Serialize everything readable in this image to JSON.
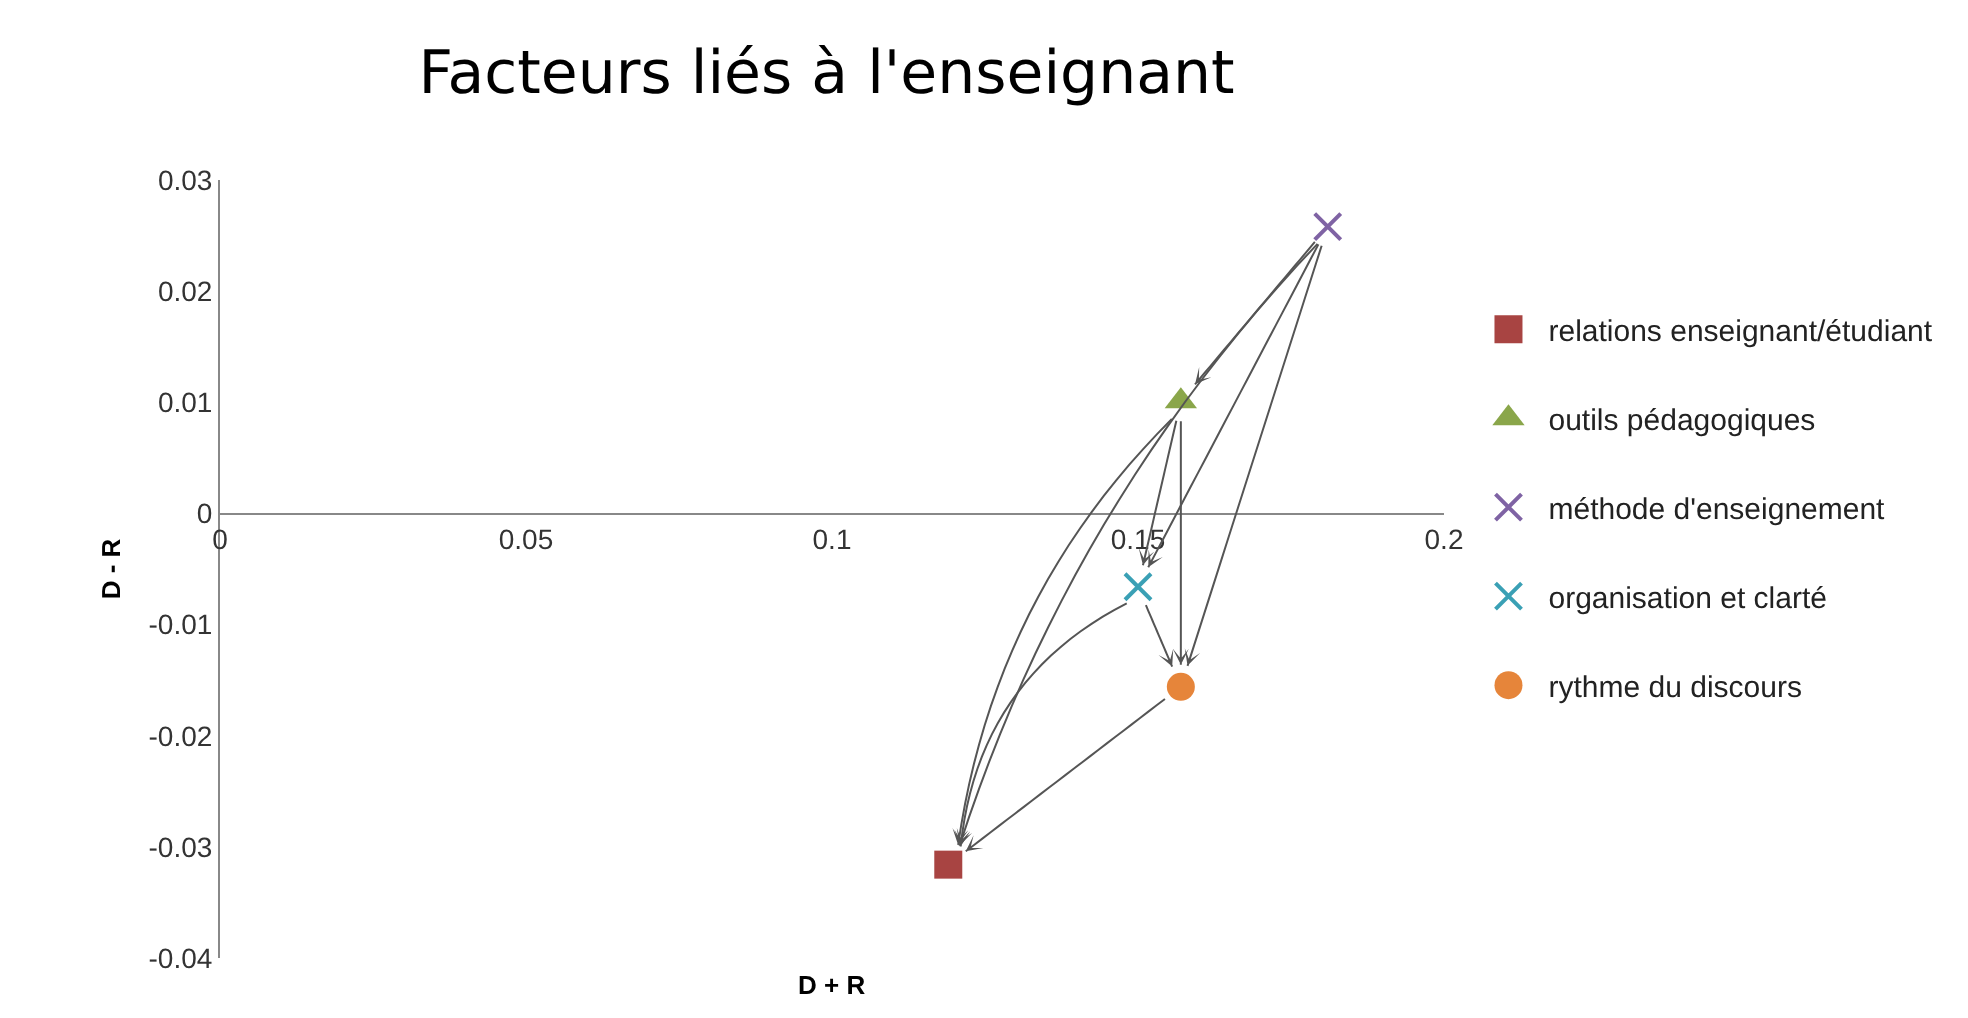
{
  "chart_data": {
    "type": "scatter",
    "title": "Facteurs liés à l'enseignant",
    "xlabel": "D + R",
    "ylabel": "D - R",
    "xlim": [
      0,
      0.2
    ],
    "xticks": [
      0,
      0.05,
      0.1,
      0.15,
      0.2
    ],
    "ylim": [
      -0.04,
      0.03
    ],
    "yticks": [
      -0.04,
      -0.03,
      -0.02,
      -0.01,
      0,
      0.01,
      0.02,
      0.03
    ],
    "grid": false,
    "legend": "right",
    "series": [
      {
        "name": "relations enseignant/étudiant",
        "color": "#a84442",
        "marker": "square",
        "x": [
          0.119
        ],
        "values": [
          -0.0316
        ]
      },
      {
        "name": "outils pédagogiques",
        "color": "#8aa64a",
        "marker": "triangle",
        "x": [
          0.157
        ],
        "values": [
          0.0101
        ]
      },
      {
        "name": "méthode d'enseignement",
        "color": "#7f63a4",
        "marker": "cross",
        "x": [
          0.181
        ],
        "values": [
          0.0258
        ]
      },
      {
        "name": "organisation et clarté",
        "color": "#3aa0b5",
        "marker": "cross",
        "x": [
          0.15
        ],
        "values": [
          -0.0066
        ]
      },
      {
        "name": "rythme du discours",
        "color": "#e6853a",
        "marker": "circle",
        "x": [
          0.157
        ],
        "values": [
          -0.0156
        ]
      }
    ]
  }
}
